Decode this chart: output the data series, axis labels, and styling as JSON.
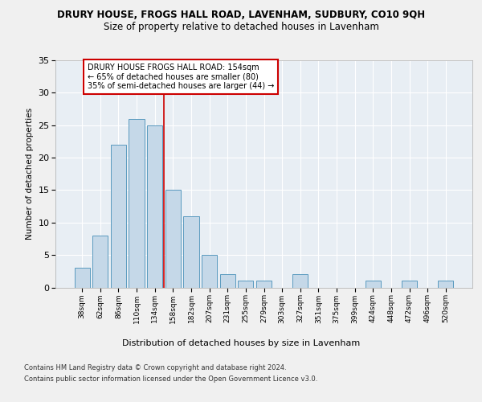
{
  "title": "DRURY HOUSE, FROGS HALL ROAD, LAVENHAM, SUDBURY, CO10 9QH",
  "subtitle": "Size of property relative to detached houses in Lavenham",
  "xlabel": "Distribution of detached houses by size in Lavenham",
  "ylabel": "Number of detached properties",
  "categories": [
    "38sqm",
    "62sqm",
    "86sqm",
    "110sqm",
    "134sqm",
    "158sqm",
    "182sqm",
    "207sqm",
    "231sqm",
    "255sqm",
    "279sqm",
    "303sqm",
    "327sqm",
    "351sqm",
    "375sqm",
    "399sqm",
    "424sqm",
    "448sqm",
    "472sqm",
    "496sqm",
    "520sqm"
  ],
  "values": [
    3,
    8,
    22,
    26,
    25,
    15,
    11,
    5,
    2,
    1,
    1,
    0,
    2,
    0,
    0,
    0,
    1,
    0,
    1,
    0,
    1
  ],
  "bar_color": "#c5d8e8",
  "bar_edge_color": "#5a9abf",
  "annotation_text_line1": "DRURY HOUSE FROGS HALL ROAD: 154sqm",
  "annotation_text_line2": "← 65% of detached houses are smaller (80)",
  "annotation_text_line3": "35% of semi-detached houses are larger (44) →",
  "ylim": [
    0,
    35
  ],
  "yticks": [
    0,
    5,
    10,
    15,
    20,
    25,
    30,
    35
  ],
  "footer_line1": "Contains HM Land Registry data © Crown copyright and database right 2024.",
  "footer_line2": "Contains public sector information licensed under the Open Government Licence v3.0.",
  "background_color": "#e8eef4",
  "grid_color": "#ffffff",
  "annotation_box_color": "#ffffff",
  "annotation_box_edge": "#cc0000",
  "red_line_color": "#cc0000",
  "fig_bg": "#f0f0f0"
}
